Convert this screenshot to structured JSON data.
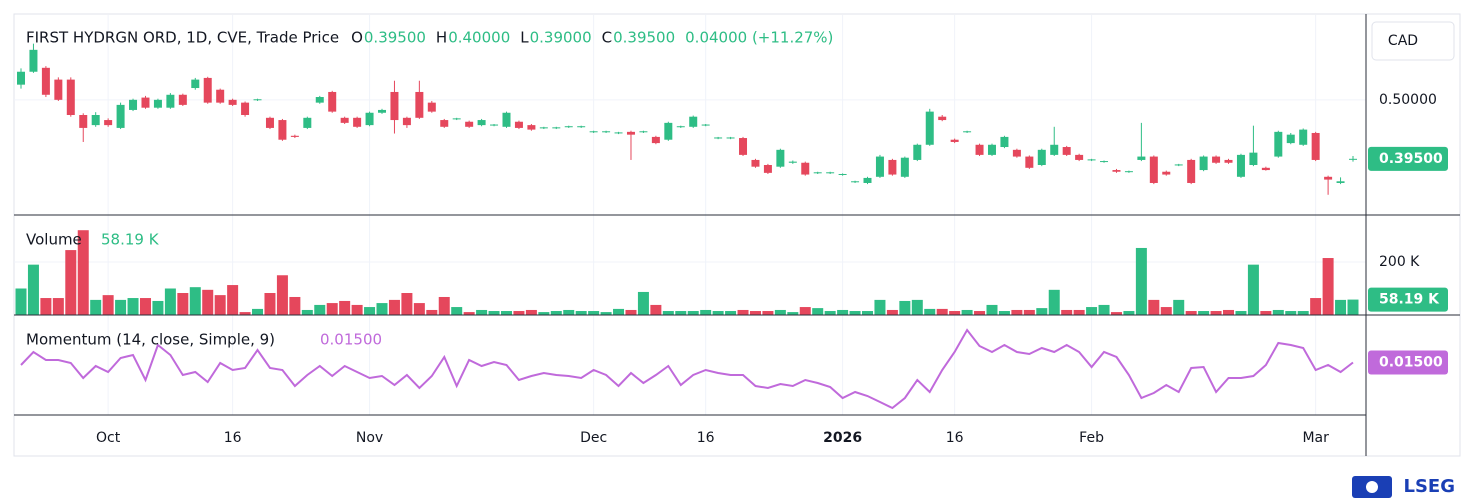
{
  "chart_data": {
    "type": "candlestick",
    "title": "FIRST HYDRGN ORD, 1D, CVE, Trade Price",
    "ohlc_labels": [
      "O",
      "H",
      "L",
      "C"
    ],
    "ohlc_values": [
      "0.39500",
      "0.40000",
      "0.39000",
      "0.39500"
    ],
    "change_label": "0.04000 (+11.27%)",
    "currency": "CAD",
    "up_color": "#2ebd85",
    "down_color": "#e5475c",
    "categories": [
      null,
      null,
      null,
      null,
      null,
      null,
      null,
      "Oct",
      null,
      null,
      null,
      null,
      null,
      null,
      null,
      null,
      null,
      "16",
      null,
      null,
      null,
      null,
      null,
      null,
      null,
      null,
      null,
      null,
      "Nov",
      null,
      null,
      null,
      null,
      null,
      null,
      null,
      null,
      null,
      null,
      null,
      null,
      null,
      null,
      null,
      null,
      null,
      "Dec",
      null,
      null,
      null,
      null,
      null,
      null,
      null,
      null,
      "16",
      null,
      null,
      null,
      null,
      null,
      null,
      null,
      null,
      null,
      null,
      "2026",
      null,
      null,
      null,
      null,
      null,
      null,
      null,
      null,
      "16",
      null,
      null,
      null,
      null,
      null,
      null,
      null,
      null,
      null,
      null,
      "Feb",
      null,
      null,
      null,
      null,
      null,
      null,
      null,
      null,
      null,
      null,
      null,
      null,
      null,
      null,
      null,
      null,
      null,
      "Mar",
      null,
      null,
      null
    ],
    "ohlc": [
      [
        0.527,
        0.556,
        0.52,
        0.55
      ],
      [
        0.55,
        0.6,
        0.548,
        0.589
      ],
      [
        0.557,
        0.56,
        0.505,
        0.509
      ],
      [
        0.536,
        0.54,
        0.498,
        0.5
      ],
      [
        0.536,
        0.54,
        0.47,
        0.473
      ],
      [
        0.473,
        0.476,
        0.425,
        0.45
      ],
      [
        0.455,
        0.478,
        0.452,
        0.473
      ],
      [
        0.464,
        0.467,
        0.452,
        0.455
      ],
      [
        0.45,
        0.495,
        0.448,
        0.491
      ],
      [
        0.482,
        0.502,
        0.48,
        0.5
      ],
      [
        0.504,
        0.507,
        0.484,
        0.486
      ],
      [
        0.486,
        0.502,
        0.484,
        0.5
      ],
      [
        0.486,
        0.512,
        0.484,
        0.509
      ],
      [
        0.509,
        0.511,
        0.489,
        0.491
      ],
      [
        0.521,
        0.539,
        0.518,
        0.536
      ],
      [
        0.539,
        0.541,
        0.493,
        0.495
      ],
      [
        0.518,
        0.52,
        0.493,
        0.495
      ],
      [
        0.5,
        0.502,
        0.489,
        0.491
      ],
      [
        0.495,
        0.497,
        0.47,
        0.473
      ],
      [
        0.5,
        0.502,
        0.498,
        0.501
      ],
      [
        0.468,
        0.47,
        0.448,
        0.45
      ],
      [
        0.464,
        0.466,
        0.427,
        0.429
      ],
      [
        0.436,
        0.438,
        0.432,
        0.434
      ],
      [
        0.45,
        0.47,
        0.448,
        0.468
      ],
      [
        0.495,
        0.507,
        0.493,
        0.505
      ],
      [
        0.514,
        0.516,
        0.477,
        0.479
      ],
      [
        0.468,
        0.47,
        0.457,
        0.459
      ],
      [
        0.468,
        0.47,
        0.45,
        0.452
      ],
      [
        0.455,
        0.479,
        0.453,
        0.477
      ],
      [
        0.477,
        0.484,
        0.475,
        0.482
      ],
      [
        0.514,
        0.534,
        0.44,
        0.464
      ],
      [
        0.468,
        0.47,
        0.45,
        0.455
      ],
      [
        0.514,
        0.534,
        0.466,
        0.468
      ],
      [
        0.495,
        0.498,
        0.477,
        0.479
      ],
      [
        0.464,
        0.466,
        0.45,
        0.452
      ],
      [
        0.466,
        0.468,
        0.464,
        0.467
      ],
      [
        0.461,
        0.463,
        0.45,
        0.452
      ],
      [
        0.455,
        0.466,
        0.453,
        0.464
      ],
      [
        0.455,
        0.457,
        0.453,
        0.456
      ],
      [
        0.452,
        0.479,
        0.45,
        0.477
      ],
      [
        0.461,
        0.463,
        0.448,
        0.45
      ],
      [
        0.455,
        0.457,
        0.445,
        0.447
      ],
      [
        0.45,
        0.452,
        0.448,
        0.451
      ],
      [
        0.45,
        0.452,
        0.448,
        0.451
      ],
      [
        0.452,
        0.454,
        0.45,
        0.453
      ],
      [
        0.452,
        0.454,
        0.45,
        0.453
      ],
      [
        0.443,
        0.445,
        0.441,
        0.444
      ],
      [
        0.443,
        0.445,
        0.441,
        0.444
      ],
      [
        0.441,
        0.443,
        0.439,
        0.442
      ],
      [
        0.443,
        0.445,
        0.393,
        0.438
      ],
      [
        0.443,
        0.445,
        0.441,
        0.444
      ],
      [
        0.434,
        0.436,
        0.421,
        0.423
      ],
      [
        0.429,
        0.461,
        0.427,
        0.459
      ],
      [
        0.452,
        0.454,
        0.45,
        0.453
      ],
      [
        0.452,
        0.472,
        0.45,
        0.47
      ],
      [
        0.455,
        0.457,
        0.453,
        0.456
      ],
      [
        0.432,
        0.434,
        0.43,
        0.433
      ],
      [
        0.432,
        0.434,
        0.43,
        0.433
      ],
      [
        0.432,
        0.434,
        0.4,
        0.402
      ],
      [
        0.393,
        0.395,
        0.379,
        0.381
      ],
      [
        0.384,
        0.386,
        0.368,
        0.37
      ],
      [
        0.381,
        0.413,
        0.379,
        0.411
      ],
      [
        0.388,
        0.392,
        0.386,
        0.39
      ],
      [
        0.388,
        0.39,
        0.365,
        0.367
      ],
      [
        0.37,
        0.372,
        0.368,
        0.371
      ],
      [
        0.37,
        0.372,
        0.368,
        0.371
      ],
      [
        0.367,
        0.369,
        0.365,
        0.368
      ],
      [
        0.354,
        0.356,
        0.352,
        0.355
      ],
      [
        0.352,
        0.363,
        0.35,
        0.361
      ],
      [
        0.363,
        0.402,
        0.361,
        0.399
      ],
      [
        0.393,
        0.395,
        0.365,
        0.367
      ],
      [
        0.363,
        0.399,
        0.361,
        0.397
      ],
      [
        0.393,
        0.422,
        0.391,
        0.42
      ],
      [
        0.42,
        0.484,
        0.418,
        0.479
      ],
      [
        0.47,
        0.473,
        0.462,
        0.464
      ],
      [
        0.429,
        0.431,
        0.423,
        0.425
      ],
      [
        0.443,
        0.445,
        0.441,
        0.444
      ],
      [
        0.42,
        0.422,
        0.4,
        0.402
      ],
      [
        0.402,
        0.422,
        0.4,
        0.42
      ],
      [
        0.416,
        0.436,
        0.414,
        0.434
      ],
      [
        0.411,
        0.413,
        0.397,
        0.399
      ],
      [
        0.399,
        0.401,
        0.377,
        0.379
      ],
      [
        0.384,
        0.413,
        0.382,
        0.411
      ],
      [
        0.402,
        0.452,
        0.4,
        0.42
      ],
      [
        0.416,
        0.418,
        0.4,
        0.402
      ],
      [
        0.402,
        0.404,
        0.391,
        0.393
      ],
      [
        0.393,
        0.395,
        0.391,
        0.394
      ],
      [
        0.39,
        0.392,
        0.388,
        0.391
      ],
      [
        0.375,
        0.377,
        0.37,
        0.372
      ],
      [
        0.372,
        0.374,
        0.37,
        0.373
      ],
      [
        0.393,
        0.459,
        0.391,
        0.399
      ],
      [
        0.399,
        0.401,
        0.35,
        0.352
      ],
      [
        0.372,
        0.374,
        0.365,
        0.367
      ],
      [
        0.384,
        0.386,
        0.382,
        0.385
      ],
      [
        0.393,
        0.395,
        0.35,
        0.352
      ],
      [
        0.375,
        0.401,
        0.373,
        0.399
      ],
      [
        0.399,
        0.401,
        0.386,
        0.388
      ],
      [
        0.393,
        0.395,
        0.386,
        0.388
      ],
      [
        0.363,
        0.404,
        0.361,
        0.402
      ],
      [
        0.384,
        0.454,
        0.382,
        0.406
      ],
      [
        0.379,
        0.381,
        0.374,
        0.375
      ],
      [
        0.399,
        0.445,
        0.397,
        0.443
      ],
      [
        0.423,
        0.441,
        0.421,
        0.438
      ],
      [
        0.42,
        0.449,
        0.418,
        0.447
      ],
      [
        0.441,
        0.443,
        0.391,
        0.393
      ],
      [
        0.363,
        0.365,
        0.331,
        0.358
      ],
      [
        0.352,
        0.362,
        0.35,
        0.355
      ],
      [
        0.395,
        0.4,
        0.39,
        0.395
      ]
    ],
    "ylim": [
      0.295,
      0.651
    ],
    "yticks": [
      {
        "value": 0.5,
        "label": "0.50000"
      }
    ],
    "last_price": {
      "value": 0.395,
      "label": "0.39500"
    },
    "volume": {
      "title": "Volume",
      "last_label": "58.19 K",
      "values": [
        100000,
        190000,
        64000,
        64000,
        245000,
        320000,
        57000,
        75000,
        57000,
        64000,
        64000,
        53000,
        100000,
        83000,
        105000,
        95000,
        75000,
        113000,
        11000,
        23000,
        83000,
        150000,
        68000,
        19000,
        38000,
        45000,
        53000,
        38000,
        30000,
        45000,
        57000,
        83000,
        45000,
        19000,
        68000,
        30000,
        11000,
        19000,
        15000,
        15000,
        15000,
        19000,
        11000,
        15000,
        19000,
        15000,
        15000,
        11000,
        23000,
        19000,
        87000,
        38000,
        15000,
        15000,
        15000,
        19000,
        15000,
        15000,
        19000,
        15000,
        15000,
        19000,
        11000,
        30000,
        26000,
        15000,
        19000,
        15000,
        15000,
        57000,
        19000,
        53000,
        57000,
        23000,
        23000,
        15000,
        19000,
        15000,
        38000,
        15000,
        19000,
        19000,
        26000,
        95000,
        19000,
        19000,
        30000,
        38000,
        11000,
        15000,
        253000,
        57000,
        30000,
        57000,
        15000,
        15000,
        15000,
        19000,
        15000,
        190000,
        15000,
        19000,
        15000,
        15000,
        64000,
        215000,
        57000,
        58190
      ],
      "ylim": [
        0,
        377400
      ],
      "yticks": [
        {
          "value": 200000,
          "label": "200 K"
        }
      ],
      "last": {
        "value": 58190,
        "label": "58.19 K"
      }
    },
    "momentum": {
      "title": "Momentum (14, close, Simple, 9)",
      "last_label": "0.01500",
      "color": "#c06adb",
      "values": [
        0.01,
        0.036,
        0.02,
        0.02,
        0.014,
        -0.016,
        0.008,
        -0.004,
        0.024,
        0.03,
        -0.02,
        0.05,
        0.03,
        -0.01,
        -0.004,
        -0.024,
        0.014,
        0,
        0.004,
        0.04,
        0.004,
        0,
        -0.032,
        -0.01,
        0.008,
        -0.012,
        0.008,
        -0.004,
        -0.016,
        -0.012,
        -0.03,
        -0.01,
        -0.036,
        -0.012,
        0.026,
        -0.032,
        0.02,
        0.008,
        0.016,
        0.01,
        -0.02,
        -0.012,
        -0.006,
        -0.01,
        -0.012,
        -0.016,
        0,
        -0.01,
        -0.032,
        -0.006,
        -0.026,
        -0.01,
        0.008,
        -0.03,
        -0.01,
        0,
        -0.006,
        -0.01,
        -0.01,
        -0.032,
        -0.036,
        -0.028,
        -0.032,
        -0.02,
        -0.026,
        -0.034,
        -0.056,
        -0.044,
        -0.052,
        -0.064,
        -0.076,
        -0.056,
        -0.02,
        -0.044,
        0,
        0.036,
        0.08,
        0.048,
        0.036,
        0.05,
        0.036,
        0.032,
        0.044,
        0.036,
        0.05,
        0.036,
        0.006,
        0.036,
        0.026,
        -0.01,
        -0.056,
        -0.046,
        -0.03,
        -0.044,
        0.004,
        0.006,
        -0.044,
        -0.016,
        -0.016,
        -0.012,
        0.01,
        0.054,
        0.05,
        0.044,
        0,
        0.01,
        -0.004,
        0.015
      ],
      "ylim": [
        -0.09,
        0.11
      ],
      "last": {
        "value": 0.015,
        "label": "0.01500"
      }
    },
    "brand": "LSEG"
  }
}
